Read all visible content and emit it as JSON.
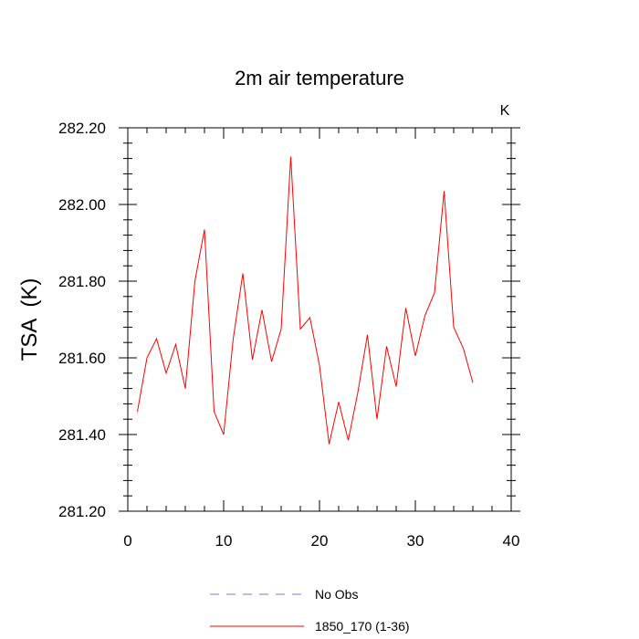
{
  "chart_data": {
    "type": "line",
    "title": "2m air temperature",
    "units": "K",
    "ylabel": "TSA  (K)",
    "xlabel": "",
    "xlim": [
      0,
      40
    ],
    "ylim": [
      281.2,
      282.2
    ],
    "xticks": [
      0,
      10,
      20,
      30,
      40
    ],
    "yticks": [
      281.2,
      281.4,
      281.6,
      281.8,
      282.0,
      282.2
    ],
    "ytick_labels": [
      "281.20",
      "281.40",
      "281.60",
      "281.80",
      "282.00",
      "282.20"
    ],
    "legend_position": "bottom",
    "series": [
      {
        "name": "No Obs",
        "color": "#7777dd",
        "dashed": true,
        "x": [],
        "values": []
      },
      {
        "name": "1850_170 (1-36)",
        "color": "#ff0000",
        "dashed": false,
        "x": [
          1,
          2,
          3,
          4,
          5,
          6,
          7,
          8,
          9,
          10,
          11,
          12,
          13,
          14,
          15,
          16,
          17,
          18,
          19,
          20,
          21,
          22,
          23,
          24,
          25,
          26,
          27,
          28,
          29,
          30,
          31,
          32,
          33,
          34,
          35,
          36
        ],
        "values": [
          281.46,
          281.6,
          281.65,
          281.56,
          281.635,
          281.52,
          281.8,
          281.935,
          281.46,
          281.4,
          281.65,
          281.82,
          281.595,
          281.725,
          281.59,
          281.675,
          282.125,
          281.675,
          281.705,
          281.58,
          281.375,
          281.485,
          281.385,
          281.51,
          281.66,
          281.44,
          281.63,
          281.525,
          281.73,
          281.605,
          281.71,
          281.77,
          282.035,
          281.68,
          281.625,
          281.535
        ]
      }
    ]
  }
}
